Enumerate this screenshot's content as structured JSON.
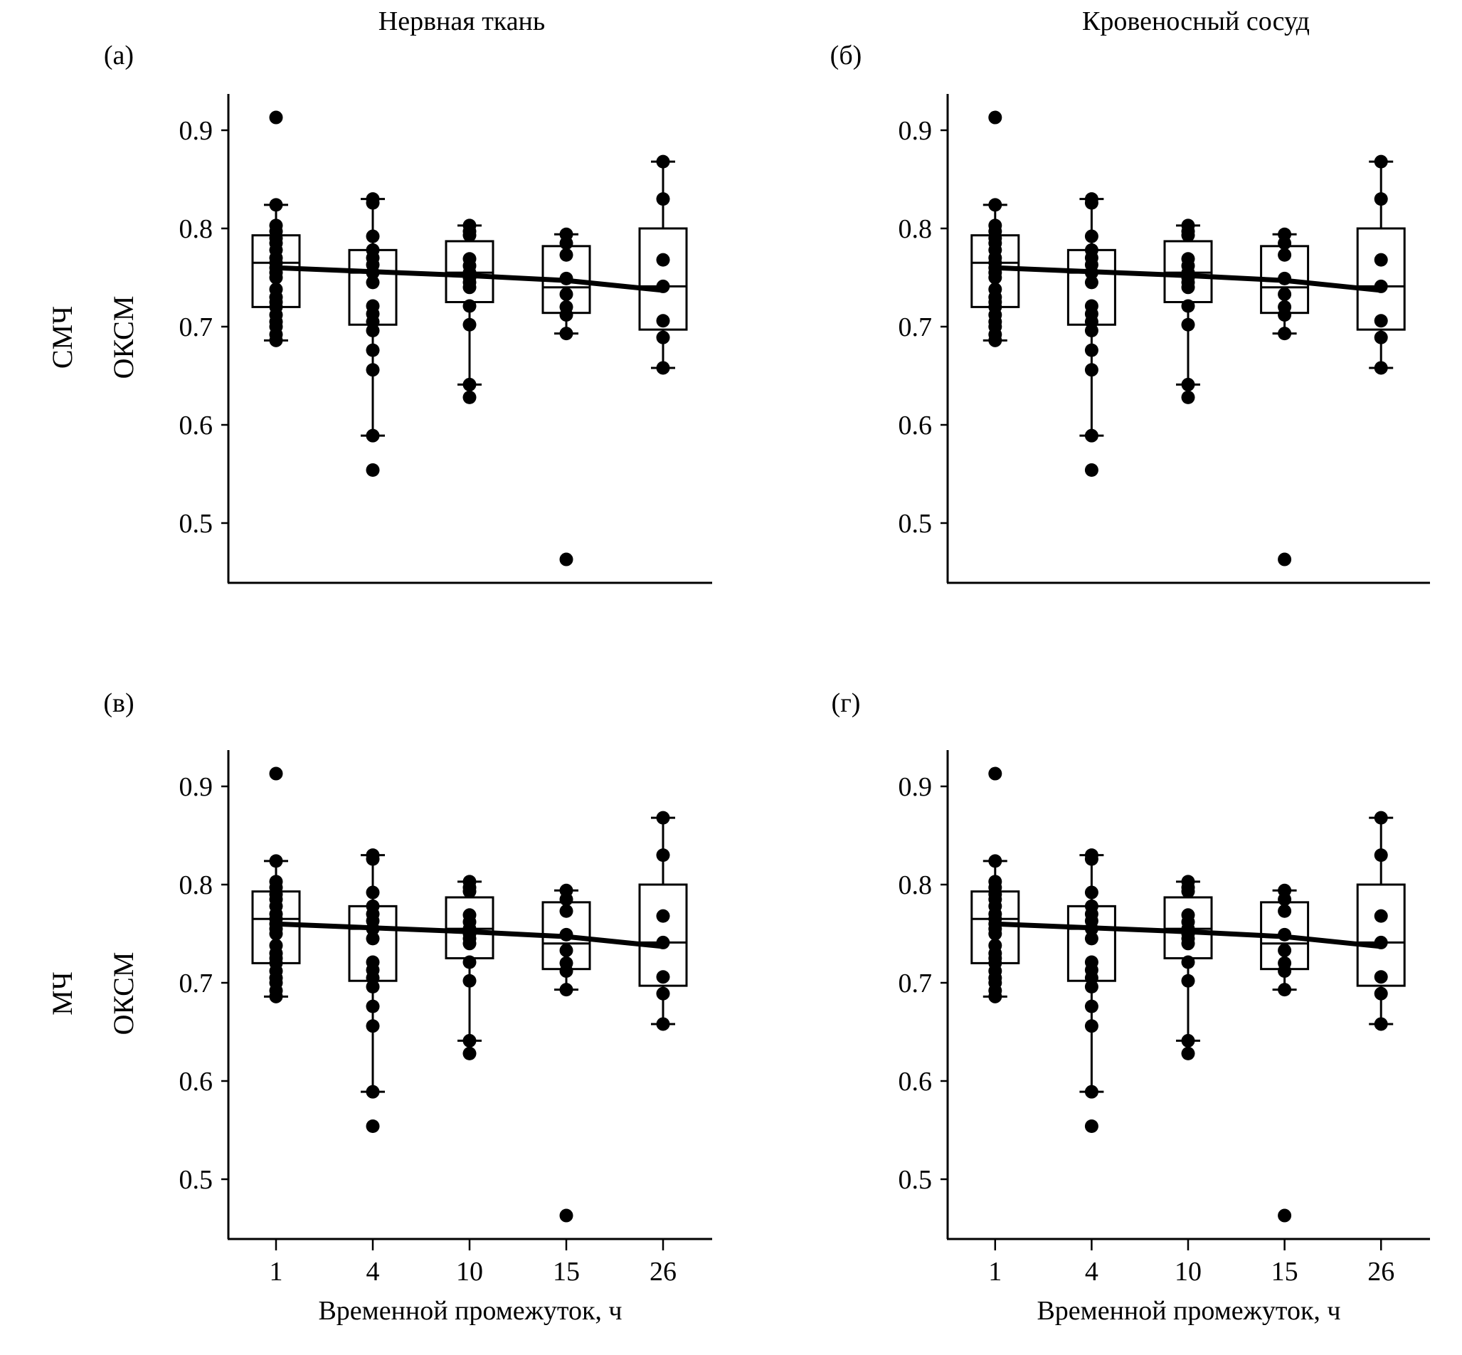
{
  "column_titles": [
    "Нервная ткань",
    "Кровеносный сосуд"
  ],
  "row_labels": [
    [
      "СМЧ",
      "ОКСМ"
    ],
    [
      "МЧ",
      "ОКСМ"
    ]
  ],
  "colors": {
    "ink": "#000000",
    "background": "#ffffff"
  },
  "chart_data": [
    {
      "panel": "(а)",
      "type": "box+strip+line",
      "categories": [
        "1",
        "4",
        "10",
        "15",
        "26"
      ],
      "xlabel": "",
      "ylabel": "ОКСМ",
      "ylim": [
        0.44,
        0.935
      ],
      "yticks": [
        "0.5",
        "0.6",
        "0.7",
        "0.8",
        "0.9"
      ],
      "grid": false,
      "show_xticks": false,
      "boxes": [
        {
          "whisker_low": 0.686,
          "q1": 0.72,
          "median": 0.765,
          "q3": 0.793,
          "whisker_high": 0.824
        },
        {
          "whisker_low": 0.589,
          "q1": 0.702,
          "median": 0.755,
          "q3": 0.778,
          "whisker_high": 0.83
        },
        {
          "whisker_low": 0.641,
          "q1": 0.725,
          "median": 0.755,
          "q3": 0.787,
          "whisker_high": 0.803
        },
        {
          "whisker_low": 0.693,
          "q1": 0.714,
          "median": 0.74,
          "q3": 0.782,
          "whisker_high": 0.794
        },
        {
          "whisker_low": 0.658,
          "q1": 0.697,
          "median": 0.741,
          "q3": 0.8,
          "whisker_high": 0.868
        }
      ],
      "points": [
        [
          0.913,
          0.824,
          0.803,
          0.797,
          0.79,
          0.785,
          0.778,
          0.77,
          0.765,
          0.76,
          0.755,
          0.75,
          0.738,
          0.73,
          0.725,
          0.72,
          0.712,
          0.705,
          0.7,
          0.692,
          0.686
        ],
        [
          0.83,
          0.826,
          0.792,
          0.778,
          0.77,
          0.763,
          0.755,
          0.745,
          0.721,
          0.713,
          0.705,
          0.696,
          0.676,
          0.656,
          0.589,
          0.554
        ],
        [
          0.803,
          0.797,
          0.793,
          0.769,
          0.762,
          0.755,
          0.75,
          0.745,
          0.74,
          0.721,
          0.702,
          0.641,
          0.628
        ],
        [
          0.794,
          0.785,
          0.773,
          0.749,
          0.733,
          0.72,
          0.712,
          0.693,
          0.463
        ],
        [
          0.868,
          0.83,
          0.768,
          0.741,
          0.706,
          0.689,
          0.658
        ]
      ],
      "trend": [
        0.76,
        0.756,
        0.752,
        0.747,
        0.737
      ]
    },
    {
      "panel": "(б)",
      "type": "box+strip+line",
      "categories": [
        "1",
        "4",
        "10",
        "15",
        "26"
      ],
      "xlabel": "",
      "ylabel": "",
      "ylim": [
        0.44,
        0.935
      ],
      "yticks": [
        "0.5",
        "0.6",
        "0.7",
        "0.8",
        "0.9"
      ],
      "grid": false,
      "show_xticks": false,
      "boxes": [
        {
          "whisker_low": 0.686,
          "q1": 0.72,
          "median": 0.765,
          "q3": 0.793,
          "whisker_high": 0.824
        },
        {
          "whisker_low": 0.589,
          "q1": 0.702,
          "median": 0.755,
          "q3": 0.778,
          "whisker_high": 0.83
        },
        {
          "whisker_low": 0.641,
          "q1": 0.725,
          "median": 0.755,
          "q3": 0.787,
          "whisker_high": 0.803
        },
        {
          "whisker_low": 0.693,
          "q1": 0.714,
          "median": 0.74,
          "q3": 0.782,
          "whisker_high": 0.794
        },
        {
          "whisker_low": 0.658,
          "q1": 0.697,
          "median": 0.741,
          "q3": 0.8,
          "whisker_high": 0.868
        }
      ],
      "points": [
        [
          0.913,
          0.824,
          0.803,
          0.797,
          0.79,
          0.785,
          0.778,
          0.77,
          0.765,
          0.76,
          0.755,
          0.75,
          0.738,
          0.73,
          0.725,
          0.72,
          0.712,
          0.705,
          0.7,
          0.692,
          0.686
        ],
        [
          0.83,
          0.826,
          0.792,
          0.778,
          0.77,
          0.763,
          0.755,
          0.745,
          0.721,
          0.713,
          0.705,
          0.696,
          0.676,
          0.656,
          0.589,
          0.554
        ],
        [
          0.803,
          0.797,
          0.793,
          0.769,
          0.762,
          0.755,
          0.75,
          0.745,
          0.74,
          0.721,
          0.702,
          0.641,
          0.628
        ],
        [
          0.794,
          0.785,
          0.773,
          0.749,
          0.733,
          0.72,
          0.712,
          0.693,
          0.463
        ],
        [
          0.868,
          0.83,
          0.768,
          0.741,
          0.706,
          0.689,
          0.658
        ]
      ],
      "trend": [
        0.76,
        0.756,
        0.752,
        0.747,
        0.737
      ]
    },
    {
      "panel": "(в)",
      "type": "box+strip+line",
      "categories": [
        "1",
        "4",
        "10",
        "15",
        "26"
      ],
      "xlabel": "Временной промежуток, ч",
      "ylabel": "ОКСМ",
      "ylim": [
        0.44,
        0.935
      ],
      "yticks": [
        "0.5",
        "0.6",
        "0.7",
        "0.8",
        "0.9"
      ],
      "grid": false,
      "show_xticks": true,
      "boxes": [
        {
          "whisker_low": 0.686,
          "q1": 0.72,
          "median": 0.765,
          "q3": 0.793,
          "whisker_high": 0.824
        },
        {
          "whisker_low": 0.589,
          "q1": 0.702,
          "median": 0.755,
          "q3": 0.778,
          "whisker_high": 0.83
        },
        {
          "whisker_low": 0.641,
          "q1": 0.725,
          "median": 0.755,
          "q3": 0.787,
          "whisker_high": 0.803
        },
        {
          "whisker_low": 0.693,
          "q1": 0.714,
          "median": 0.74,
          "q3": 0.782,
          "whisker_high": 0.794
        },
        {
          "whisker_low": 0.658,
          "q1": 0.697,
          "median": 0.741,
          "q3": 0.8,
          "whisker_high": 0.868
        }
      ],
      "points": [
        [
          0.913,
          0.824,
          0.803,
          0.797,
          0.79,
          0.785,
          0.778,
          0.77,
          0.765,
          0.76,
          0.755,
          0.75,
          0.738,
          0.73,
          0.725,
          0.72,
          0.712,
          0.705,
          0.7,
          0.692,
          0.686
        ],
        [
          0.83,
          0.826,
          0.792,
          0.778,
          0.77,
          0.763,
          0.755,
          0.745,
          0.721,
          0.713,
          0.705,
          0.696,
          0.676,
          0.656,
          0.589,
          0.554
        ],
        [
          0.803,
          0.797,
          0.793,
          0.769,
          0.762,
          0.755,
          0.75,
          0.745,
          0.74,
          0.721,
          0.702,
          0.641,
          0.628
        ],
        [
          0.794,
          0.785,
          0.773,
          0.749,
          0.733,
          0.72,
          0.712,
          0.693,
          0.463
        ],
        [
          0.868,
          0.83,
          0.768,
          0.741,
          0.706,
          0.689,
          0.658
        ]
      ],
      "trend": [
        0.76,
        0.756,
        0.752,
        0.747,
        0.737
      ]
    },
    {
      "panel": "(г)",
      "type": "box+strip+line",
      "categories": [
        "1",
        "4",
        "10",
        "15",
        "26"
      ],
      "xlabel": "Временной промежуток, ч",
      "ylabel": "",
      "ylim": [
        0.44,
        0.935
      ],
      "yticks": [
        "0.5",
        "0.6",
        "0.7",
        "0.8",
        "0.9"
      ],
      "grid": false,
      "show_xticks": true,
      "boxes": [
        {
          "whisker_low": 0.686,
          "q1": 0.72,
          "median": 0.765,
          "q3": 0.793,
          "whisker_high": 0.824
        },
        {
          "whisker_low": 0.589,
          "q1": 0.702,
          "median": 0.755,
          "q3": 0.778,
          "whisker_high": 0.83
        },
        {
          "whisker_low": 0.641,
          "q1": 0.725,
          "median": 0.755,
          "q3": 0.787,
          "whisker_high": 0.803
        },
        {
          "whisker_low": 0.693,
          "q1": 0.714,
          "median": 0.74,
          "q3": 0.782,
          "whisker_high": 0.794
        },
        {
          "whisker_low": 0.658,
          "q1": 0.697,
          "median": 0.741,
          "q3": 0.8,
          "whisker_high": 0.868
        }
      ],
      "points": [
        [
          0.913,
          0.824,
          0.803,
          0.797,
          0.79,
          0.785,
          0.778,
          0.77,
          0.765,
          0.76,
          0.755,
          0.75,
          0.738,
          0.73,
          0.725,
          0.72,
          0.712,
          0.705,
          0.7,
          0.692,
          0.686
        ],
        [
          0.83,
          0.826,
          0.792,
          0.778,
          0.77,
          0.763,
          0.755,
          0.745,
          0.721,
          0.713,
          0.705,
          0.696,
          0.676,
          0.656,
          0.589,
          0.554
        ],
        [
          0.803,
          0.797,
          0.793,
          0.769,
          0.762,
          0.755,
          0.75,
          0.745,
          0.74,
          0.721,
          0.702,
          0.641,
          0.628
        ],
        [
          0.794,
          0.785,
          0.773,
          0.749,
          0.733,
          0.72,
          0.712,
          0.693,
          0.463
        ],
        [
          0.868,
          0.83,
          0.768,
          0.741,
          0.706,
          0.689,
          0.658
        ]
      ],
      "trend": [
        0.76,
        0.756,
        0.752,
        0.747,
        0.737
      ]
    }
  ]
}
